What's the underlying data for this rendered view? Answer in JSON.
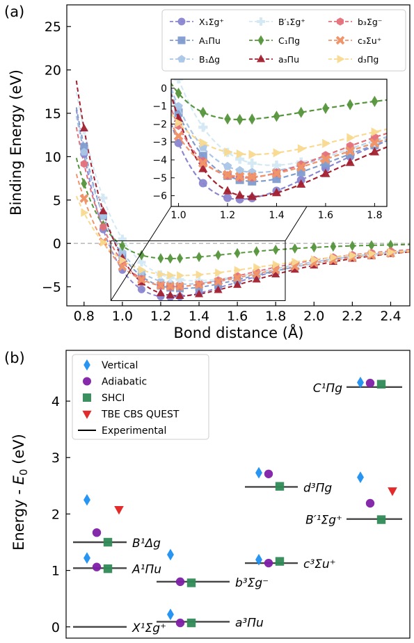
{
  "panel_a": {
    "label": "(a)",
    "xlabel": "Bond distance (Å)",
    "ylabel": "Binding Energy (eV)",
    "chart_data": {
      "type": "scatter",
      "xlim": [
        0.71,
        2.5
      ],
      "ylim": [
        -7.2,
        27.5
      ],
      "xticks": [
        0.8,
        1.0,
        1.2,
        1.4,
        1.6,
        1.8,
        2.0,
        2.2,
        2.4
      ],
      "yticks": [
        -5,
        0,
        5,
        10,
        15,
        20,
        25
      ],
      "zero_line": true,
      "legend": "top-right, 3 columns",
      "series": [
        {
          "name": "X₁Σg⁺",
          "sub": "1",
          "sup": "+",
          "color": "#8a86cf",
          "marker": "circle",
          "re": 1.25,
          "De": 6.2,
          "a": 2.15,
          "curve_shift": 0.0
        },
        {
          "name": "A₁Πu",
          "sub": "1",
          "color": "#7f9ccf",
          "marker": "square",
          "re": 1.31,
          "De": 5.2,
          "a": 2.0,
          "curve_shift": 0.0
        },
        {
          "name": "B₁Δg",
          "sub": "1",
          "color": "#a9c6e6",
          "marker": "pentagon",
          "re": 1.32,
          "De": 4.7,
          "a": 1.98,
          "curve_shift": 0.0
        },
        {
          "name": "B′₁Σg⁺",
          "sub": "1",
          "sup": "+",
          "color": "#d4e9f4",
          "marker": "plus",
          "re": 1.38,
          "De": 4.3,
          "a": 1.9,
          "curve_shift": 0.0
        },
        {
          "name": "C₁Πg",
          "sub": "1",
          "color": "#55953b",
          "marker": "diamond",
          "re": 1.25,
          "De": 1.75,
          "a": 2.6,
          "curve_shift": 0.0
        },
        {
          "name": "a₃Πu",
          "sub": "3",
          "color": "#a3202f",
          "marker": "triangle",
          "re": 1.3,
          "De": 6.05,
          "a": 2.05,
          "curve_shift": 0.0
        },
        {
          "name": "b₃Σg⁻",
          "sub": "3",
          "sup": "−",
          "color": "#e4707a",
          "marker": "hexagon",
          "re": 1.27,
          "De": 5.0,
          "a": 2.1,
          "curve_shift": 0.0
        },
        {
          "name": "c₃Σu⁺",
          "sub": "3",
          "sup": "+",
          "color": "#f0946a",
          "marker": "x",
          "re": 1.28,
          "De": 4.95,
          "a": 1.85,
          "curve_shift": 0.0
        },
        {
          "name": "d₃Πg",
          "sub": "3",
          "color": "#f8d98f",
          "marker": "triangle-right",
          "re": 1.3,
          "De": 3.7,
          "a": 1.75,
          "curve_shift": 0.0
        }
      ],
      "x_points": [
        0.8,
        0.9,
        1.0,
        1.1,
        1.2,
        1.25,
        1.3,
        1.4,
        1.5,
        1.6,
        1.7,
        1.8,
        1.9,
        2.0,
        2.1,
        2.2,
        2.3,
        2.4
      ],
      "inset": {
        "xlim": [
          0.97,
          1.85
        ],
        "ylim": [
          -6.6,
          0.5
        ],
        "xticks": [
          1.0,
          1.2,
          1.4,
          1.6,
          1.8
        ],
        "yticks": [
          0,
          -1,
          -2,
          -3,
          -4,
          -5,
          -6
        ]
      }
    }
  },
  "panel_b": {
    "label": "(b)",
    "ylabel": "Energy - E₀ (eV)",
    "chart_data": {
      "type": "scatter",
      "ylim": [
        -0.2,
        4.9
      ],
      "yticks": [
        0,
        1,
        2,
        3,
        4
      ],
      "legend": "top-left",
      "legend_entries": [
        {
          "name": "Vertical",
          "marker": "diamond",
          "color": "#1b8ff0"
        },
        {
          "name": "Adiabatic",
          "marker": "circle",
          "color": "#7d1fa6"
        },
        {
          "name": "SHCI",
          "marker": "square",
          "color": "#2f8a55"
        },
        {
          "name": "TBE CBS QUEST",
          "marker": "triangle-down",
          "color": "#e02020"
        },
        {
          "name": "Experimental",
          "marker": "line",
          "color": "#000000"
        }
      ],
      "states": [
        {
          "label": "X¹Σg⁺",
          "column": 0,
          "experimental": 0.0
        },
        {
          "label": "A¹Πu",
          "column": 0,
          "experimental": 1.04,
          "vertical": 1.22,
          "adiabatic": 1.06,
          "shci": 1.03
        },
        {
          "label": "B¹Δg",
          "column": 0,
          "experimental": 1.5,
          "vertical": 2.25,
          "adiabatic": 1.67,
          "shci": 1.5,
          "tbe": 2.08
        },
        {
          "label": "a³Πu",
          "column": 1,
          "experimental": 0.09,
          "vertical": 0.22,
          "adiabatic": 0.07,
          "shci": 0.07
        },
        {
          "label": "b³Σg⁻",
          "column": 1,
          "experimental": 0.8,
          "vertical": 1.28,
          "adiabatic": 0.8,
          "shci": 0.78
        },
        {
          "label": "c³Σu⁺",
          "column": 2,
          "experimental": 1.13,
          "vertical": 1.19,
          "adiabatic": 1.13,
          "shci": 1.16
        },
        {
          "label": "d³Πg",
          "column": 2,
          "experimental": 2.48,
          "vertical": 2.73,
          "adiabatic": 2.71,
          "shci": 2.49
        },
        {
          "label": "C¹Πg",
          "column": 3,
          "experimental": 4.25,
          "vertical": 4.33,
          "adiabatic": 4.32,
          "shci": 4.3
        },
        {
          "label": "B′¹Σg⁺",
          "column": 3,
          "experimental": 1.91,
          "vertical": 2.65,
          "adiabatic": 2.19,
          "shci": 1.9,
          "tbe": 2.41
        }
      ]
    }
  }
}
